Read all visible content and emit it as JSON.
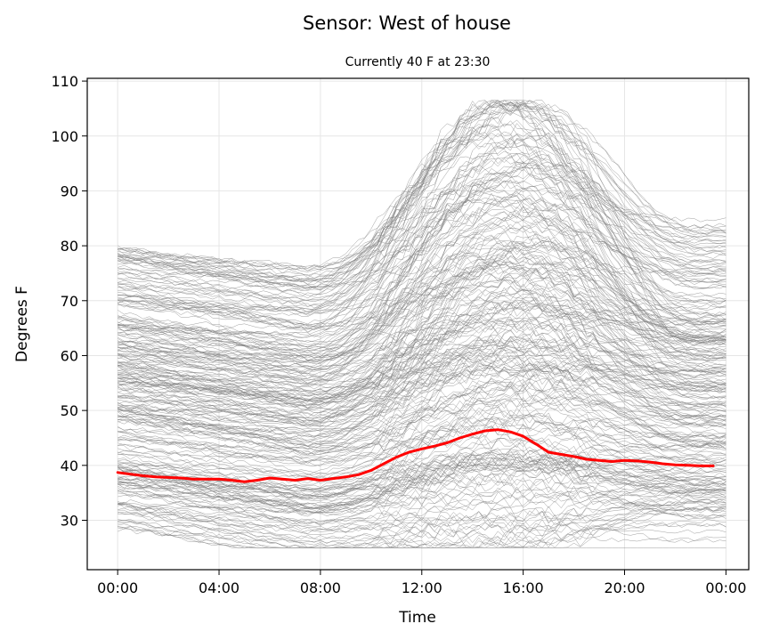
{
  "chart_data": {
    "type": "line",
    "title": "Sensor: West of house",
    "subtitle": "Currently 40 F at 23:30",
    "xlabel": "Time",
    "ylabel": "Degrees F",
    "x_unit": "hours",
    "xlim": [
      -1.2,
      24.9
    ],
    "ylim": [
      21,
      110.5
    ],
    "x_ticks": [
      {
        "value": 0,
        "label": "00:00"
      },
      {
        "value": 4,
        "label": "04:00"
      },
      {
        "value": 8,
        "label": "08:00"
      },
      {
        "value": 12,
        "label": "12:00"
      },
      {
        "value": 16,
        "label": "16:00"
      },
      {
        "value": 20,
        "label": "20:00"
      },
      {
        "value": 24,
        "label": "00:00"
      }
    ],
    "y_ticks": [
      30,
      40,
      50,
      60,
      70,
      80,
      90,
      100,
      110
    ],
    "grid": true,
    "legend": "none",
    "history_color": "#808080",
    "current_color": "#ff0000",
    "history_days": 260,
    "history_profile": {
      "x": [
        0,
        2,
        4,
        6,
        7.5,
        9,
        11,
        13,
        14.5,
        16,
        17,
        18,
        20,
        22,
        24
      ],
      "night_start_range": [
        28,
        80
      ],
      "afternoon_peak_range": [
        31,
        106
      ]
    },
    "series": [
      {
        "name": "",
        "x": [
          0,
          0.5,
          1,
          1.5,
          2,
          2.5,
          3,
          3.5,
          4,
          4.5,
          5,
          5.5,
          6,
          6.5,
          7,
          7.5,
          8,
          8.5,
          9,
          9.5,
          10,
          10.5,
          11,
          11.5,
          12,
          12.5,
          13,
          13.5,
          14,
          14.5,
          15,
          15.5,
          16,
          16.5,
          17,
          17.5,
          18,
          18.5,
          19,
          19.5,
          20,
          20.5,
          21,
          21.5,
          22,
          22.5,
          23,
          23.5
        ],
        "y": [
          38.7,
          38.4,
          38.1,
          37.9,
          37.8,
          37.7,
          37.5,
          37.5,
          37.5,
          37.3,
          37.0,
          37.3,
          37.7,
          37.5,
          37.3,
          37.6,
          37.3,
          37.6,
          37.9,
          38.3,
          39.1,
          40.3,
          41.5,
          42.4,
          43.0,
          43.5,
          44.1,
          45.0,
          45.7,
          46.3,
          46.5,
          46.1,
          45.3,
          43.9,
          42.4,
          42.0,
          41.6,
          41.1,
          40.9,
          40.7,
          40.9,
          40.8,
          40.6,
          40.3,
          40.1,
          40.0,
          39.9,
          39.9
        ]
      }
    ]
  }
}
